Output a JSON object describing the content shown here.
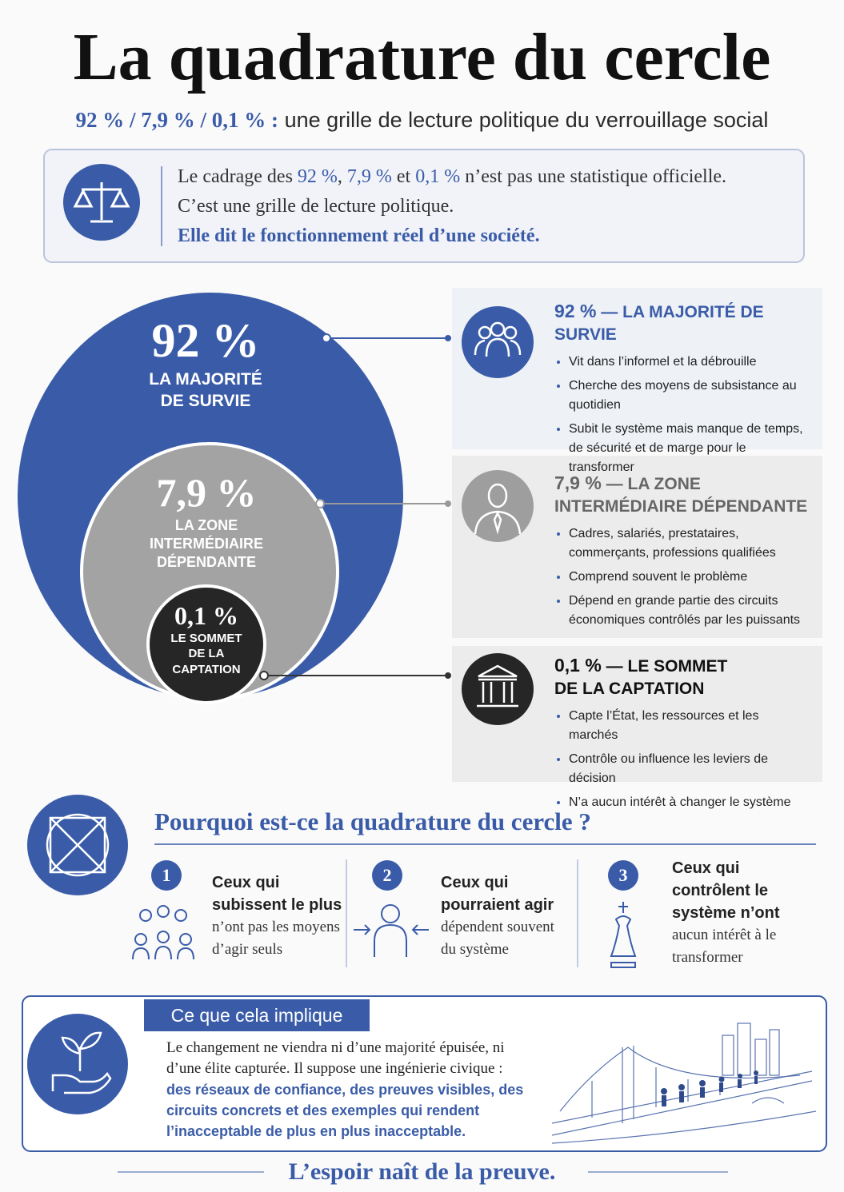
{
  "header": {
    "title": "La quadrature du cercle",
    "subtitle_figures": "92 % / 7,9 % / 0,1 % :",
    "subtitle_text": "une grille de lecture politique du verrouillage social"
  },
  "intro": {
    "line1": [
      "Le cadrage des ",
      "92 %",
      ", ",
      "7,9 %",
      " et ",
      "0,1 %",
      " n’est pas une statistique officielle."
    ],
    "line2": "C’est une grille de lecture politique.",
    "line3": "Elle dit le fonctionnement réel d’une société."
  },
  "circles": [
    {
      "figure": "92 %",
      "label": [
        "LA MAJORITÉ",
        "DE SURVIE"
      ]
    },
    {
      "figure": "7,9 %",
      "label": [
        "LA ZONE",
        "INTERMÉDIAIRE",
        "DÉPENDANTE"
      ]
    },
    {
      "figure": "0,1 %",
      "label": [
        "LE SOMMET",
        "DE LA",
        "CAPTATION"
      ]
    }
  ],
  "groups": [
    {
      "figure": "92 %",
      "title": [
        "— LA MAJORITÉ DE SURVIE"
      ],
      "bullets": [
        "Vit dans l’informel et la débrouille",
        "Cherche des moyens de subsistance au quotidien",
        "Subit le système mais manque de temps, de sécurité et de marge pour le transformer"
      ]
    },
    {
      "figure": "7,9 %",
      "title": [
        "— LA ZONE",
        "INTERMÉDIAIRE DÉPENDANTE"
      ],
      "bullets": [
        "Cadres, salariés, prestataires, commerçants, professions qualifiées",
        "Comprend souvent le problème",
        "Dépend en grande partie des circuits économiques contrôlés par les puissants"
      ]
    },
    {
      "figure": "0,1 %",
      "title": [
        "— LE SOMMET",
        "DE LA CAPTATION"
      ],
      "bullets": [
        "Capte l’État, les ressources et les marchés",
        "Contrôle ou influence les leviers de décision",
        "N’a aucun intérêt à changer le système"
      ]
    }
  ],
  "why": {
    "title": "Pourquoi est-ce la quadrature du cercle ?",
    "items": [
      {
        "number": "1",
        "bold": "Ceux qui subissent le plus",
        "text": "n’ont pas les moyens d’agir seuls"
      },
      {
        "number": "2",
        "bold": "Ceux qui pourraient agir",
        "text": "dépendent souvent du système"
      },
      {
        "number": "3",
        "bold": "Ceux qui contrôlent le système n’ont",
        "text": "aucun intérêt à le transformer"
      }
    ]
  },
  "implication": {
    "title": "Ce que cela implique",
    "text": "Le changement ne viendra ni d’une majorité épuisée, ni d’une élite capturée. Il suppose une ingénierie civique :",
    "emphasis": "des réseaux de confiance, des preuves visibles, des circuits concrets et des exemples qui rendent l’inacceptable de plus en plus inacceptable."
  },
  "footer": "L’espoir naît de la preuve."
}
